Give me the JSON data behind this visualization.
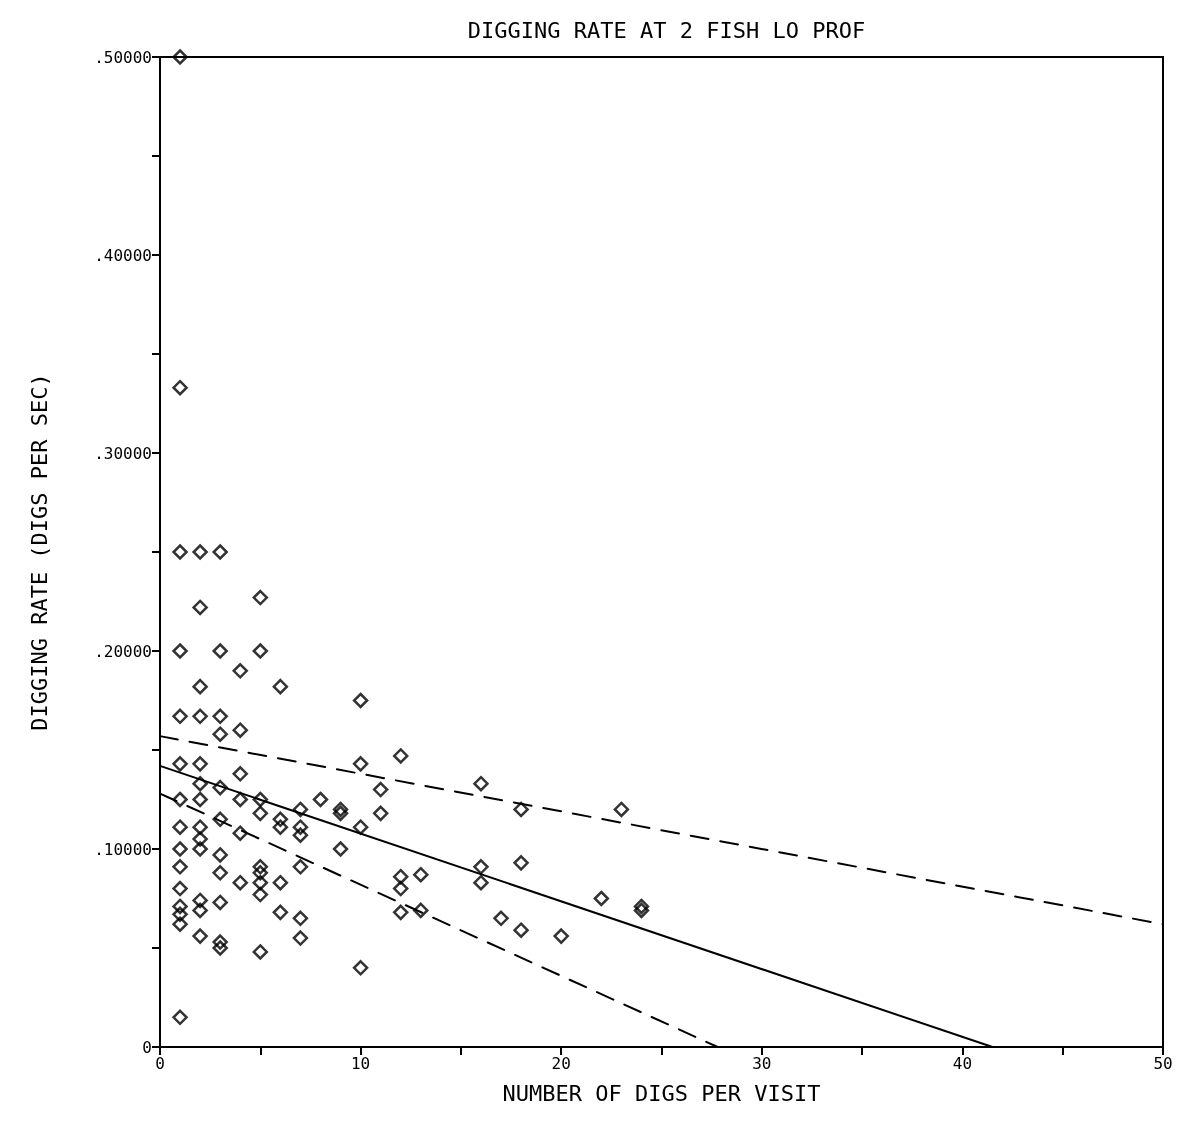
{
  "chart_data": {
    "type": "scatter",
    "title": "DIGGING RATE AT 2 FISH LO PROF",
    "xlabel": "NUMBER OF DIGS PER VISIT",
    "ylabel": "DIGGING RATE (DIGS PER SEC)",
    "xlim": [
      0,
      50
    ],
    "ylim": [
      0,
      0.5
    ],
    "xticks": [
      0,
      {
        "value": 5,
        "label": null
      },
      10,
      {
        "value": 15,
        "label": null
      },
      20,
      {
        "value": 25,
        "label": null
      },
      30,
      {
        "value": 35,
        "label": null
      },
      40,
      {
        "value": 45,
        "label": null
      },
      50
    ],
    "yticks": [
      {
        "value": 0,
        "label": "0"
      },
      {
        "value": 0.05,
        "label": null
      },
      {
        "value": 0.1,
        "label": ".10000"
      },
      {
        "value": 0.15,
        "label": null
      },
      {
        "value": 0.2,
        "label": ".20000"
      },
      {
        "value": 0.25,
        "label": null
      },
      {
        "value": 0.3,
        "label": ".30000"
      },
      {
        "value": 0.35,
        "label": null
      },
      {
        "value": 0.4,
        "label": ".40000"
      },
      {
        "value": 0.45,
        "label": null
      },
      {
        "value": 0.5,
        "label": ".50000"
      }
    ],
    "grid": false,
    "marker": "diamond",
    "series": [
      {
        "type": "scatter",
        "color": "#000000",
        "x": [
          1,
          1,
          1,
          1,
          1,
          1,
          1,
          1,
          1,
          1,
          1,
          1,
          1,
          1,
          1,
          2,
          2,
          2,
          2,
          2,
          2,
          2,
          2,
          2,
          2,
          2,
          2,
          2,
          3,
          3,
          3,
          3,
          3,
          3,
          3,
          3,
          3,
          3,
          3,
          4,
          4,
          4,
          4,
          4,
          4,
          5,
          5,
          5,
          5,
          5,
          5,
          5,
          5,
          5,
          6,
          6,
          6,
          6,
          6,
          7,
          7,
          7,
          7,
          7,
          7,
          8,
          9,
          9,
          9,
          10,
          10,
          10,
          10,
          11,
          11,
          12,
          12,
          12,
          12,
          13,
          13,
          16,
          16,
          16,
          17,
          18,
          18,
          18,
          20,
          22,
          23,
          24,
          24
        ],
        "values": [
          0.5,
          0.333,
          0.25,
          0.2,
          0.167,
          0.143,
          0.125,
          0.111,
          0.1,
          0.091,
          0.08,
          0.071,
          0.067,
          0.062,
          0.015,
          0.25,
          0.222,
          0.182,
          0.167,
          0.143,
          0.133,
          0.125,
          0.111,
          0.105,
          0.1,
          0.074,
          0.069,
          0.056,
          0.25,
          0.2,
          0.167,
          0.158,
          0.131,
          0.115,
          0.097,
          0.088,
          0.073,
          0.053,
          0.05,
          0.19,
          0.16,
          0.138,
          0.125,
          0.108,
          0.083,
          0.227,
          0.2,
          0.125,
          0.118,
          0.091,
          0.088,
          0.083,
          0.077,
          0.048,
          0.182,
          0.115,
          0.111,
          0.083,
          0.068,
          0.12,
          0.111,
          0.107,
          0.091,
          0.065,
          0.055,
          0.125,
          0.12,
          0.118,
          0.1,
          0.175,
          0.143,
          0.111,
          0.04,
          0.13,
          0.118,
          0.147,
          0.086,
          0.08,
          0.068,
          0.087,
          0.069,
          0.133,
          0.091,
          0.083,
          0.065,
          0.12,
          0.093,
          0.059,
          0.056,
          0.075,
          0.12,
          0.071,
          0.069
        ]
      },
      {
        "type": "line",
        "color": "#000000",
        "marker": "none",
        "line_style": "solid",
        "x": [
          0,
          41.5
        ],
        "values": [
          0.142,
          0
        ]
      },
      {
        "type": "line",
        "color": "#000000",
        "marker": "none",
        "line_style": "dashed",
        "x": [
          0,
          50
        ],
        "values": [
          0.157,
          0.062
        ]
      },
      {
        "type": "line",
        "color": "#000000",
        "marker": "none",
        "line_style": "dashed",
        "x": [
          0,
          27.8
        ],
        "values": [
          0.128,
          0
        ]
      }
    ]
  }
}
